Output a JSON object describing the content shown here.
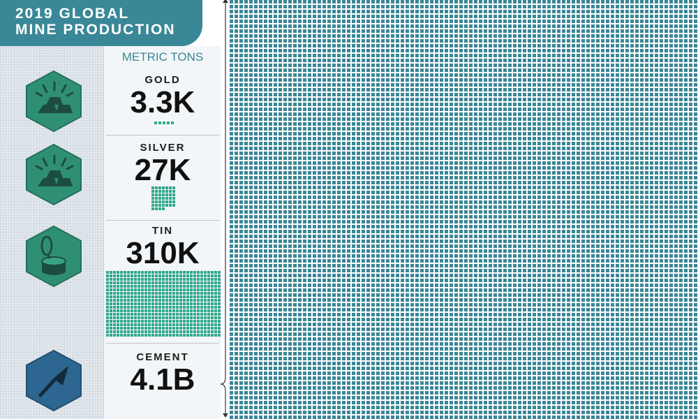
{
  "title": {
    "line1": "2019 GLOBAL",
    "line2": "MINE PRODUCTION"
  },
  "units": "METRIC TONS",
  "colors": {
    "banner": "#3a8797",
    "metal_icon_fill": "#2f8f74",
    "cement_icon_fill": "#2d6690",
    "square_teal": "#3a8797",
    "square_green": "#2fa88a"
  },
  "icons": {
    "gold": "gold-bars-icon",
    "silver": "silver-bars-icon",
    "tin": "tin-can-icon",
    "cement": "trowel-icon"
  },
  "chart_data": {
    "type": "waffle",
    "unit": "metric tons",
    "series": [
      {
        "name": "GOLD",
        "label": "3.3K",
        "value": 3300
      },
      {
        "name": "SILVER",
        "label": "27K",
        "value": 27000
      },
      {
        "name": "TIN",
        "label": "310K",
        "value": 310000
      },
      {
        "name": "CEMENT",
        "label": "4.1B",
        "value": 4100000000
      }
    ]
  }
}
